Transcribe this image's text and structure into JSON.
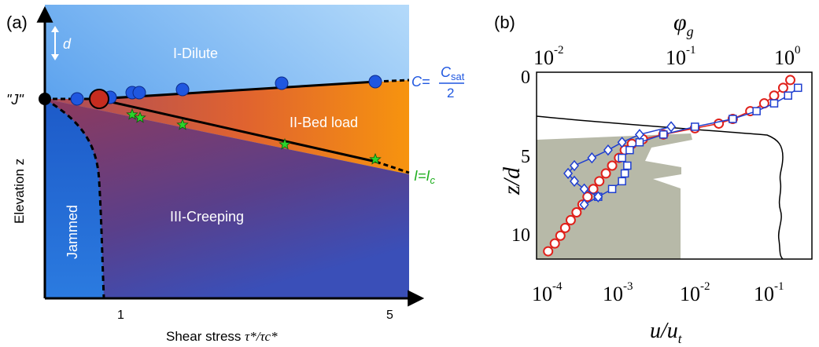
{
  "panel_a": {
    "panel_label": "(a)",
    "d_label": "d",
    "region_dilute": "I-Dilute",
    "region_bedload": "II-Bed load",
    "region_creeping": "III-Creeping",
    "region_jammed": "Jammed",
    "point_j_label": "\"J\"",
    "ylabel": "Elevation z",
    "xlabel_text": "Shear stress ",
    "xlabel_math": "τ*/τc*",
    "xtick_1": "1",
    "xtick_5": "5",
    "line_c_label_left": "C=",
    "line_c_frac_num": "C",
    "line_c_frac_num_sub": "sat",
    "line_c_frac_den": "2",
    "line_i_label": "I=I",
    "line_i_label_sub": "c",
    "colors": {
      "dilute": "#5aa8ef",
      "bedload": "#f08a1a",
      "creeping": "#6a3f8f",
      "jammed": "#2a6fd6",
      "blue_marker": "#1f57e0",
      "red_marker": "#c62c1f",
      "green_star": "#2bd42b",
      "c_label": "#1f57e0",
      "i_label": "#22b022"
    }
  },
  "panel_b": {
    "panel_label": "(b)",
    "top_axis_label": "φg",
    "top_axis_label_main": "φ",
    "top_axis_label_sub": "g",
    "bottom_axis_label_main": "u/u",
    "bottom_axis_label_sub": "t",
    "left_axis_label": "z/d",
    "top_ticks": [
      "10-2",
      "10-1",
      "100"
    ],
    "top_tick_base": "10",
    "top_tick_exps": [
      "-2",
      "-1",
      "0"
    ],
    "bottom_tick_base": "10",
    "bottom_tick_exps": [
      "-4",
      "-3",
      "-2",
      "-1"
    ],
    "left_ticks": [
      "0",
      "5",
      "10"
    ]
  },
  "chart_data": [
    {
      "type": "scatter",
      "panel": "(a)",
      "title": "",
      "xlabel": "Shear stress τ*/τc*",
      "ylabel": "Elevation z",
      "xticks": [
        1,
        5
      ],
      "series": [
        {
          "name": "C=Csat/2",
          "marker": "circle",
          "color": "#1f57e0",
          "points": [
            [
              0.5,
              0.5
            ],
            [
              0.9,
              0.45
            ],
            [
              1.2,
              0.5
            ],
            [
              1.3,
              0.55
            ],
            [
              2.0,
              0.6
            ],
            [
              3.9,
              0.75
            ],
            [
              5.1,
              0.85
            ]
          ]
        },
        {
          "name": "",
          "marker": "circle-large",
          "color": "#c62c1f",
          "points": [
            [
              1.0,
              0.5
            ]
          ]
        },
        {
          "name": "I=Ic",
          "marker": "star",
          "color": "#2bd42b",
          "points": [
            [
              1.2,
              1.7
            ],
            [
              1.3,
              1.8
            ],
            [
              2.0,
              2.1
            ],
            [
              3.9,
              3.3
            ],
            [
              5.1,
              4.4
            ]
          ]
        }
      ]
    },
    {
      "type": "line",
      "panel": "(b)",
      "xlabel": "u/ut",
      "ylabel": "z/d",
      "x_scale": "log",
      "xlim": [
        0.0001,
        0.3
      ],
      "top_axis": {
        "label": "φg",
        "scale": "log",
        "lim": [
          0.01,
          1.0
        ]
      },
      "ylim": [
        0,
        12
      ],
      "y_inverted": true,
      "series": [
        {
          "name": "",
          "marker": "circle",
          "color": "#e0201a",
          "z": [
            0.5,
            1.0,
            1.5,
            2.0,
            2.5,
            3.0,
            3.3,
            3.6,
            4.0,
            4.3,
            4.6,
            5.0,
            5.5,
            6.0,
            6.5,
            7.0,
            7.5,
            8.0,
            8.5,
            9.0,
            9.5,
            10.0,
            10.5,
            11.0,
            11.5
          ],
          "u": [
            0.16,
            0.13,
            0.1,
            0.075,
            0.05,
            0.03,
            0.02,
            0.01,
            0.004,
            0.0022,
            0.0016,
            0.0013,
            0.0011,
            0.0009,
            0.00075,
            0.00062,
            0.00052,
            0.00044,
            0.00038,
            0.00032,
            0.00027,
            0.00023,
            0.0002,
            0.00017,
            0.00014
          ]
        },
        {
          "name": "",
          "marker": "square",
          "color": "#1f3fd0",
          "z": [
            1.0,
            1.5,
            2.0,
            2.5,
            3.0,
            3.5,
            4.0,
            4.5,
            5.0,
            5.5,
            6.0,
            6.5,
            7.0,
            7.5,
            8.0
          ],
          "u": [
            0.2,
            0.15,
            0.1,
            0.06,
            0.03,
            0.01,
            0.004,
            0.002,
            0.0015,
            0.0012,
            0.0014,
            0.0013,
            0.0012,
            0.0009,
            0.0006
          ]
        },
        {
          "name": "",
          "marker": "diamond",
          "color": "#1f3fd0",
          "z": [
            3.5,
            4.0,
            4.5,
            5.0,
            5.5,
            6.0,
            6.5,
            7.0,
            7.5,
            8.0,
            8.5
          ],
          "u": [
            0.005,
            0.002,
            0.0012,
            0.0008,
            0.0005,
            0.0003,
            0.00025,
            0.0003,
            0.0004,
            0.0006,
            0.0004
          ]
        }
      ],
      "phi_profile": {
        "z": [
          2.5,
          3.0,
          3.5,
          4.0,
          4.5,
          5.0,
          6.0,
          8.0,
          10.0,
          11.5
        ],
        "phi": [
          0.01,
          0.1,
          0.3,
          0.55,
          0.62,
          0.6,
          0.61,
          0.6,
          0.6,
          0.6
        ]
      },
      "shaded_region": "gray"
    }
  ]
}
